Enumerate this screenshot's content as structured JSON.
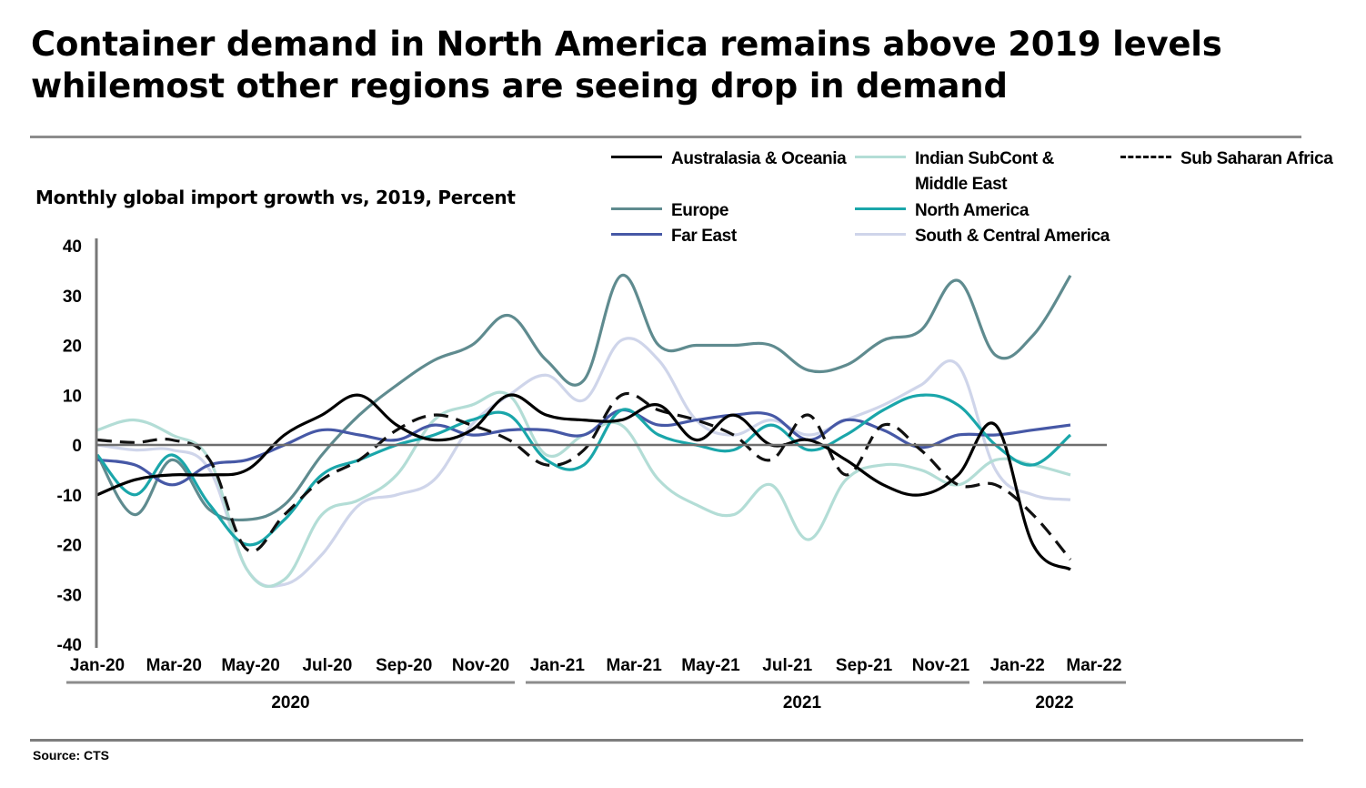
{
  "header": {
    "title_line1": "Container demand in North America remains above 2019 levels",
    "title_line2": "whilemost other regions are seeing drop in demand",
    "subtitle": "Monthly global import growth vs, 2019, Percent"
  },
  "footer": {
    "source": "Source: CTS"
  },
  "chart_data": {
    "type": "line",
    "title": "Container demand in North America remains above 2019 levels whilemost other regions are seeing drop in demand",
    "subtitle": "Monthly global import growth vs, 2019, Percent",
    "xlabel": "",
    "ylabel": "Percent",
    "ylim": [
      -40,
      40
    ],
    "yticks": [
      40,
      30,
      20,
      10,
      0,
      -10,
      -20,
      -30,
      -40
    ],
    "grid": false,
    "legend_position": "top-right",
    "x": [
      "Jan-20",
      "Feb-20",
      "Mar-20",
      "Apr-20",
      "May-20",
      "Jun-20",
      "Jul-20",
      "Aug-20",
      "Sep-20",
      "Oct-20",
      "Nov-20",
      "Dec-20",
      "Jan-21",
      "Feb-21",
      "Mar-21",
      "Apr-21",
      "May-21",
      "Jun-21",
      "Jul-21",
      "Aug-21",
      "Sep-21",
      "Oct-21",
      "Nov-21",
      "Dec-21",
      "Jan-22",
      "Feb-22",
      "Mar-22"
    ],
    "xtick_labels": [
      "Jan-20",
      "Mar-20",
      "May-20",
      "Jul-20",
      "Sep-20",
      "Nov-20",
      "Jan-21",
      "Mar-21",
      "May-21",
      "Jul-21",
      "Sep-21",
      "Nov-21",
      "Jan-22",
      "Mar-22"
    ],
    "year_groups": [
      {
        "label": "2020",
        "from": "Jan-20",
        "to": "Dec-20"
      },
      {
        "label": "2021",
        "from": "Jan-21",
        "to": "Dec-21"
      },
      {
        "label": "2022",
        "from": "Jan-22",
        "to": "Mar-22"
      }
    ],
    "series": [
      {
        "name": "Australasia & Oceania",
        "color": "#000000",
        "dash": false,
        "values": [
          -10,
          -7,
          -6,
          -6,
          -5,
          2,
          6,
          10,
          4,
          1,
          3,
          10,
          6,
          5,
          5,
          8,
          1,
          6,
          0,
          1,
          -3,
          -8,
          -10,
          -6,
          4,
          -20,
          -25
        ]
      },
      {
        "name": "Indian SubCont & Middle East",
        "color": "#b3ddd6",
        "dash": false,
        "values": [
          3,
          5,
          2,
          -3,
          -25,
          -27,
          -14,
          -11,
          -6,
          5,
          8,
          10,
          -2,
          2,
          4,
          -7,
          -12,
          -14,
          -8,
          -19,
          -7,
          -4,
          -5,
          -8,
          -3,
          -4,
          -6
        ]
      },
      {
        "name": "Sub Saharan Africa",
        "color": "#111111",
        "dash": true,
        "values": [
          1,
          0.5,
          1,
          -3,
          -21,
          -14,
          -7,
          -3,
          3,
          6,
          4,
          1,
          -4,
          -1,
          10,
          7,
          5,
          2,
          -3,
          6,
          -6,
          4,
          -1,
          -8,
          -8,
          -14,
          -23
        ]
      },
      {
        "name": "Europe",
        "color": "#5f8b8f",
        "dash": false,
        "values": [
          -2,
          -14,
          -3,
          -13,
          -15,
          -12,
          -2,
          6,
          12,
          17,
          20,
          26,
          17,
          13,
          34,
          20,
          20,
          20,
          20,
          15,
          16,
          21,
          23,
          33,
          18,
          22,
          34
        ]
      },
      {
        "name": "North America",
        "color": "#1aa6aa",
        "dash": false,
        "values": [
          -2,
          -10,
          -2,
          -12,
          -20,
          -15,
          -6,
          -3,
          0,
          2,
          5,
          6,
          -3,
          -4,
          7,
          2,
          0,
          -1,
          4,
          -1,
          2,
          7,
          10,
          8,
          0,
          -4,
          2
        ]
      },
      {
        "name": "Far East",
        "color": "#4658a6",
        "dash": false,
        "values": [
          -3,
          -4,
          -8,
          -4,
          -3,
          0,
          3,
          2,
          1,
          4,
          2,
          3,
          3,
          2,
          7,
          4,
          5,
          6,
          6,
          1,
          5,
          3,
          -0.5,
          2,
          2,
          3,
          4
        ]
      },
      {
        "name": "South & Central America",
        "color": "#cfd5ea",
        "dash": false,
        "values": [
          0,
          -1,
          -1,
          -5,
          -25,
          -28,
          -22,
          -12,
          -10,
          -7,
          4,
          10,
          14,
          9,
          21,
          17,
          5,
          2,
          5,
          2,
          5,
          8,
          12,
          16,
          -5,
          -10,
          -11
        ]
      }
    ]
  }
}
